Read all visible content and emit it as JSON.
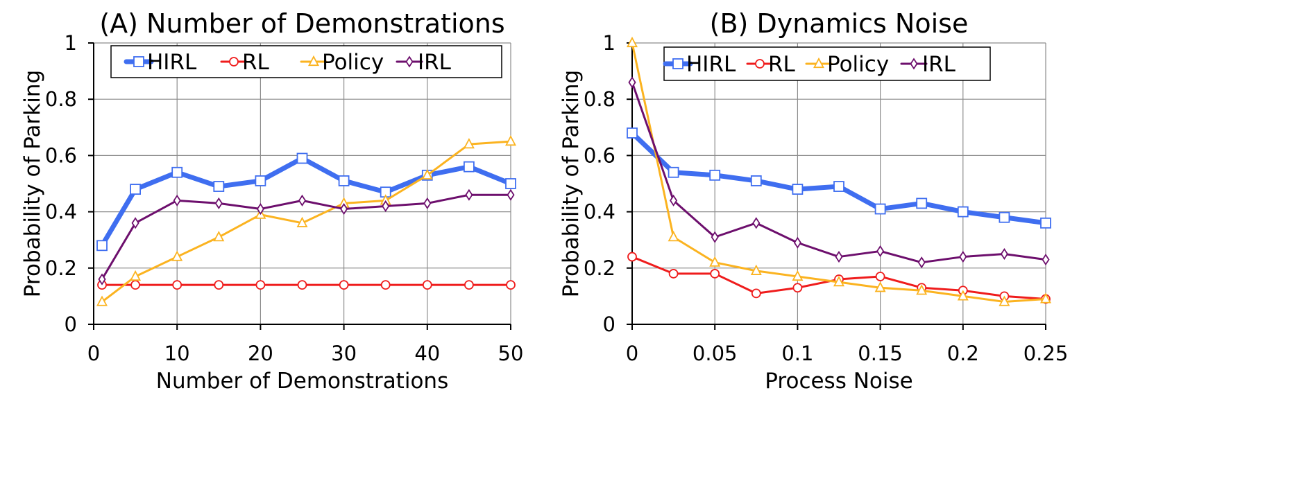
{
  "chart_data": [
    {
      "type": "line",
      "title": "(A) Number of Demonstrations",
      "xlabel": "Number of Demonstrations",
      "ylabel": "Probability of Parking",
      "xlim": [
        0,
        50
      ],
      "ylim": [
        0,
        1
      ],
      "xticks": [
        0,
        10,
        20,
        30,
        40,
        50
      ],
      "xtick_labels": [
        "0",
        "10",
        "20",
        "30",
        "40",
        "50"
      ],
      "yticks": [
        0,
        0.2,
        0.4,
        0.6,
        0.8,
        1
      ],
      "ytick_labels": [
        "0",
        "0.2",
        "0.4",
        "0.6",
        "0.8",
        "1"
      ],
      "grid": true,
      "legend_position": "top",
      "x": [
        1,
        5,
        10,
        15,
        20,
        25,
        30,
        35,
        40,
        45,
        50
      ],
      "series": [
        {
          "name": "HIRL",
          "color": "#3f6ef0",
          "marker": "square",
          "values": [
            0.28,
            0.48,
            0.54,
            0.49,
            0.51,
            0.59,
            0.51,
            0.47,
            0.53,
            0.56,
            0.5
          ]
        },
        {
          "name": "RL",
          "color": "#ef1c1c",
          "marker": "circle",
          "values": [
            0.14,
            0.14,
            0.14,
            0.14,
            0.14,
            0.14,
            0.14,
            0.14,
            0.14,
            0.14,
            0.14
          ]
        },
        {
          "name": "Policy",
          "color": "#fbb320",
          "marker": "triangle",
          "values": [
            0.08,
            0.17,
            0.24,
            0.31,
            0.39,
            0.36,
            0.43,
            0.44,
            0.53,
            0.64,
            0.65
          ]
        },
        {
          "name": "IRL",
          "color": "#6d0f6d",
          "marker": "diamond",
          "values": [
            0.16,
            0.36,
            0.44,
            0.43,
            0.41,
            0.44,
            0.41,
            0.42,
            0.43,
            0.46,
            0.46
          ]
        }
      ]
    },
    {
      "type": "line",
      "title": "(B) Dynamics Noise",
      "xlabel": "Process Noise",
      "ylabel": "Probability of Parking",
      "xlim": [
        0,
        0.25
      ],
      "ylim": [
        0,
        1
      ],
      "xticks": [
        0,
        0.05,
        0.1,
        0.15,
        0.2,
        0.25
      ],
      "xtick_labels": [
        "0",
        "0.05",
        "0.1",
        "0.15",
        "0.2",
        "0.25"
      ],
      "yticks": [
        0,
        0.2,
        0.4,
        0.6,
        0.8,
        1
      ],
      "ytick_labels": [
        "0",
        "0.2",
        "0.4",
        "0.6",
        "0.8",
        "1"
      ],
      "grid": true,
      "legend_position": "top",
      "x": [
        0,
        0.025,
        0.05,
        0.075,
        0.1,
        0.125,
        0.15,
        0.175,
        0.2,
        0.225,
        0.25
      ],
      "series": [
        {
          "name": "HIRL",
          "color": "#3f6ef0",
          "marker": "square",
          "values": [
            0.68,
            0.54,
            0.53,
            0.51,
            0.48,
            0.49,
            0.41,
            0.43,
            0.4,
            0.38,
            0.36
          ]
        },
        {
          "name": "RL",
          "color": "#ef1c1c",
          "marker": "circle",
          "values": [
            0.24,
            0.18,
            0.18,
            0.11,
            0.13,
            0.16,
            0.17,
            0.13,
            0.12,
            0.1,
            0.09
          ]
        },
        {
          "name": "Policy",
          "color": "#fbb320",
          "marker": "triangle",
          "values": [
            1.0,
            0.31,
            0.22,
            0.19,
            0.17,
            0.15,
            0.13,
            0.12,
            0.1,
            0.08,
            0.09
          ]
        },
        {
          "name": "IRL",
          "color": "#6d0f6d",
          "marker": "diamond",
          "values": [
            0.86,
            0.44,
            0.31,
            0.36,
            0.29,
            0.24,
            0.26,
            0.22,
            0.24,
            0.25,
            0.23
          ]
        }
      ]
    }
  ]
}
